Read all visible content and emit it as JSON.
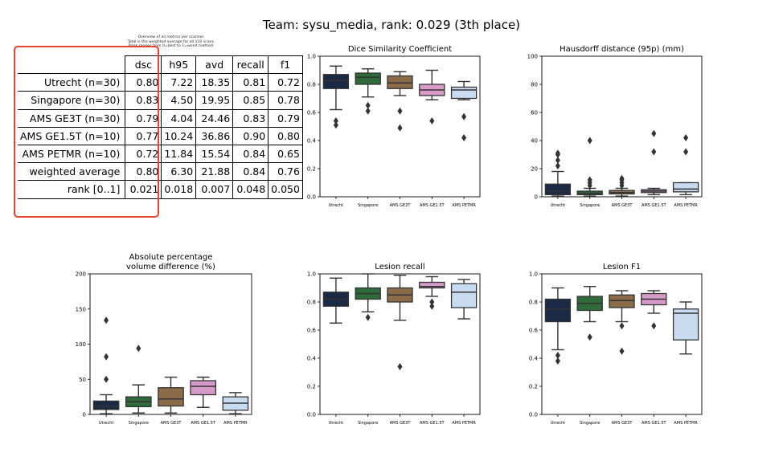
{
  "title": "Team: sysu_media, rank: 0.029 (3th place)",
  "table_caption": [
    "Overview of all metrics per scanner.",
    "Total is the weighted average for all 110 scans.",
    "Rank ranges from 0=best to 1=worst method."
  ],
  "table": {
    "columns": [
      "dsc",
      "h95",
      "avd",
      "recall",
      "f1"
    ],
    "rows": [
      {
        "label": "Utrecht (n=30)",
        "values": [
          "0.80",
          "7.22",
          "18.35",
          "0.81",
          "0.72"
        ]
      },
      {
        "label": "Singapore (n=30)",
        "values": [
          "0.83",
          "4.50",
          "19.95",
          "0.85",
          "0.78"
        ]
      },
      {
        "label": "AMS GE3T (n=30)",
        "values": [
          "0.79",
          "4.04",
          "24.46",
          "0.83",
          "0.79"
        ]
      },
      {
        "label": "AMS GE1.5T (n=10)",
        "values": [
          "0.77",
          "10.24",
          "36.86",
          "0.90",
          "0.80"
        ]
      },
      {
        "label": "AMS PETMR (n=10)",
        "values": [
          "0.72",
          "11.84",
          "15.54",
          "0.84",
          "0.65"
        ]
      },
      {
        "label": "weighted average",
        "values": [
          "0.80",
          "6.30",
          "21.88",
          "0.84",
          "0.76"
        ]
      },
      {
        "label": "rank [0..1]",
        "values": [
          "0.021",
          "0.018",
          "0.007",
          "0.048",
          "0.050"
        ]
      }
    ]
  },
  "colors": {
    "Utrecht": "#1b2a44",
    "Singapore": "#2e6a3a",
    "AMS GE3T": "#8b6b48",
    "AMS GE1.5T": "#d69ac8",
    "AMS PETMR": "#c8dbf0",
    "highlight": "#e8452e"
  },
  "chart_data": [
    {
      "type": "box",
      "title": "Dice Similarity Coefficient",
      "categories": [
        "Utrecht",
        "Singapore",
        "AMS GE3T",
        "AMS GE1.5T",
        "AMS PETMR"
      ],
      "ylim": [
        0,
        1.0
      ],
      "yticks": [
        "0.0",
        "0.2",
        "0.4",
        "0.6",
        "0.8",
        "1.0"
      ],
      "boxes": [
        {
          "whislo": 0.62,
          "q1": 0.77,
          "med": 0.83,
          "q3": 0.87,
          "whishi": 0.93,
          "fliers": [
            0.54,
            0.51
          ]
        },
        {
          "whislo": 0.71,
          "q1": 0.8,
          "med": 0.85,
          "q3": 0.88,
          "whishi": 0.91,
          "fliers": [
            0.65,
            0.61
          ]
        },
        {
          "whislo": 0.72,
          "q1": 0.77,
          "med": 0.81,
          "q3": 0.86,
          "whishi": 0.89,
          "fliers": [
            0.61,
            0.49
          ]
        },
        {
          "whislo": 0.69,
          "q1": 0.72,
          "med": 0.76,
          "q3": 0.8,
          "whishi": 0.9,
          "fliers": [
            0.54
          ]
        },
        {
          "whislo": 0.69,
          "q1": 0.7,
          "med": 0.76,
          "q3": 0.78,
          "whishi": 0.82,
          "fliers": [
            0.57,
            0.42
          ]
        }
      ]
    },
    {
      "type": "box",
      "title": "Hausdorff distance (95p) (mm)",
      "categories": [
        "Utrecht",
        "Singapore",
        "AMS GE3T",
        "AMS GE1.5T",
        "AMS PETMR"
      ],
      "ylim": [
        0,
        100
      ],
      "yticks": [
        "0",
        "20",
        "40",
        "60",
        "80",
        "100"
      ],
      "boxes": [
        {
          "whislo": 0.5,
          "q1": 1.5,
          "med": 4,
          "q3": 9,
          "whishi": 18,
          "fliers": [
            22,
            26,
            30,
            31
          ]
        },
        {
          "whislo": 0.5,
          "q1": 1.5,
          "med": 2.5,
          "q3": 4,
          "whishi": 6,
          "fliers": [
            8,
            10,
            12,
            40
          ]
        },
        {
          "whislo": 0.5,
          "q1": 2,
          "med": 3,
          "q3": 4.5,
          "whishi": 6,
          "fliers": [
            8,
            10,
            12,
            13
          ]
        },
        {
          "whislo": 1.5,
          "q1": 3,
          "med": 4,
          "q3": 5,
          "whishi": 6,
          "fliers": [
            32,
            45
          ]
        },
        {
          "whislo": 1.5,
          "q1": 3.5,
          "med": 5.5,
          "q3": 10,
          "whishi": 10,
          "fliers": [
            32,
            42
          ]
        }
      ]
    },
    {
      "type": "box",
      "title": "Absolute percentage volume difference (%)",
      "title_lines": [
        "Absolute percentage",
        "volume difference (%)"
      ],
      "categories": [
        "Utrecht",
        "Singapore",
        "AMS GE3T",
        "AMS GE1.5T",
        "AMS PETMR"
      ],
      "ylim": [
        0,
        200
      ],
      "yticks": [
        "0",
        "50",
        "100",
        "150",
        "200"
      ],
      "boxes": [
        {
          "whislo": 1,
          "q1": 7,
          "med": 12,
          "q3": 19,
          "whishi": 28,
          "fliers": [
            50,
            82,
            134
          ]
        },
        {
          "whislo": 2,
          "q1": 11,
          "med": 18,
          "q3": 25,
          "whishi": 42,
          "fliers": [
            94
          ]
        },
        {
          "whislo": 2,
          "q1": 12,
          "med": 22,
          "q3": 38,
          "whishi": 53,
          "fliers": []
        },
        {
          "whislo": 10,
          "q1": 28,
          "med": 40,
          "q3": 48,
          "whishi": 53,
          "fliers": []
        },
        {
          "whislo": 1,
          "q1": 6,
          "med": 16,
          "q3": 25,
          "whishi": 31,
          "fliers": []
        }
      ]
    },
    {
      "type": "box",
      "title": "Lesion recall",
      "categories": [
        "Utrecht",
        "Singapore",
        "AMS GE3T",
        "AMS GE1.5T",
        "AMS PETMR"
      ],
      "ylim": [
        0,
        1.0
      ],
      "yticks": [
        "0.0",
        "0.2",
        "0.4",
        "0.6",
        "0.8",
        "1.0"
      ],
      "boxes": [
        {
          "whislo": 0.65,
          "q1": 0.77,
          "med": 0.82,
          "q3": 0.87,
          "whishi": 0.97,
          "fliers": []
        },
        {
          "whislo": 0.73,
          "q1": 0.82,
          "med": 0.86,
          "q3": 0.9,
          "whishi": 1.0,
          "fliers": [
            0.69
          ]
        },
        {
          "whislo": 0.67,
          "q1": 0.8,
          "med": 0.85,
          "q3": 0.9,
          "whishi": 0.99,
          "fliers": [
            0.34
          ]
        },
        {
          "whislo": 0.84,
          "q1": 0.9,
          "med": 0.91,
          "q3": 0.94,
          "whishi": 0.98,
          "fliers": [
            0.8,
            0.77
          ]
        },
        {
          "whislo": 0.68,
          "q1": 0.76,
          "med": 0.87,
          "q3": 0.93,
          "whishi": 0.96,
          "fliers": []
        }
      ]
    },
    {
      "type": "box",
      "title": "Lesion F1",
      "categories": [
        "Utrecht",
        "Singapore",
        "AMS GE3T",
        "AMS GE1.5T",
        "AMS PETMR"
      ],
      "ylim": [
        0,
        1.0
      ],
      "yticks": [
        "0.0",
        "0.2",
        "0.4",
        "0.6",
        "0.8",
        "1.0"
      ],
      "boxes": [
        {
          "whislo": 0.46,
          "q1": 0.66,
          "med": 0.75,
          "q3": 0.82,
          "whishi": 0.9,
          "fliers": [
            0.42,
            0.38
          ]
        },
        {
          "whislo": 0.66,
          "q1": 0.74,
          "med": 0.79,
          "q3": 0.84,
          "whishi": 0.91,
          "fliers": [
            0.55
          ]
        },
        {
          "whislo": 0.66,
          "q1": 0.76,
          "med": 0.81,
          "q3": 0.85,
          "whishi": 0.88,
          "fliers": [
            0.63,
            0.45
          ]
        },
        {
          "whislo": 0.72,
          "q1": 0.78,
          "med": 0.82,
          "q3": 0.86,
          "whishi": 0.88,
          "fliers": [
            0.63
          ]
        },
        {
          "whislo": 0.43,
          "q1": 0.53,
          "med": 0.72,
          "q3": 0.75,
          "whishi": 0.8,
          "fliers": []
        }
      ]
    }
  ]
}
